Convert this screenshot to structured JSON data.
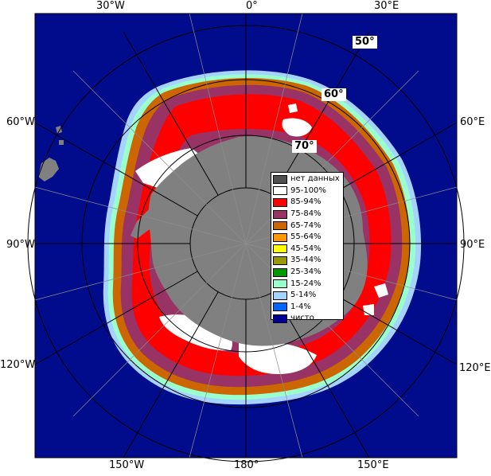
{
  "map": {
    "colors": {
      "open_water": "#000c8c",
      "land": "#808080",
      "ice_95_100": "#ffffff",
      "ice_85_94": "#ff0000",
      "ice_75_84": "#993366",
      "ice_65_74": "#cc6600",
      "ice_15_24": "#99ffcc",
      "ice_5_14": "#a6d2ff"
    }
  },
  "longitude_labels": {
    "top_left": "30°W",
    "top_center": "0°",
    "top_right": "30°E",
    "left_upper": "60°W",
    "right_upper": "60°E",
    "left_middle": "90°W",
    "right_middle": "90°E",
    "left_lower": "120°W",
    "right_lower": "120°E",
    "bottom_left": "150°W",
    "bottom_center": "180°",
    "bottom_right": "150°E"
  },
  "latitude_labels": {
    "lat50": "50°",
    "lat60": "60°",
    "lat70": "70°"
  },
  "legend": {
    "items": [
      {
        "label": "нет данных",
        "color": "#505050"
      },
      {
        "label": "95-100%",
        "color": "#ffffff"
      },
      {
        "label": "85-94%",
        "color": "#ff0000"
      },
      {
        "label": "75-84%",
        "color": "#993366"
      },
      {
        "label": "65-74%",
        "color": "#cc6600"
      },
      {
        "label": "55-64%",
        "color": "#ff9900"
      },
      {
        "label": "45-54%",
        "color": "#ffff00"
      },
      {
        "label": "35-44%",
        "color": "#999900"
      },
      {
        "label": "25-34%",
        "color": "#009900"
      },
      {
        "label": "15-24%",
        "color": "#99ffcc"
      },
      {
        "label": "5-14%",
        "color": "#a6d2ff"
      },
      {
        "label": "1-4%",
        "color": "#0066ff"
      },
      {
        "label": "чисто",
        "color": "#000099"
      }
    ]
  }
}
